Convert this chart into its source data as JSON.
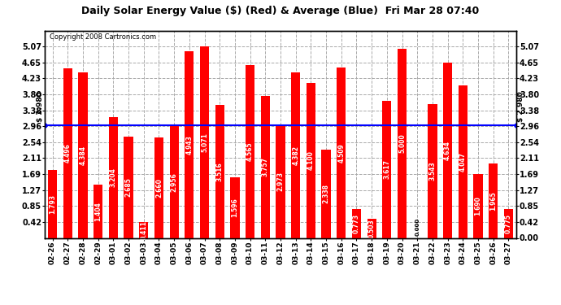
{
  "title": "Daily Solar Energy Value ($) (Red) & Average (Blue)  Fri Mar 28 07:40",
  "copyright": "Copyright 2008 Cartronics.com",
  "average": 2.98,
  "bar_color": "#FF0000",
  "average_color": "#0000FF",
  "background_color": "#FFFFFF",
  "plot_bg_color": "#FFFFFF",
  "categories": [
    "02-26",
    "02-27",
    "02-28",
    "02-29",
    "03-01",
    "03-02",
    "03-03",
    "03-04",
    "03-05",
    "03-06",
    "03-07",
    "03-08",
    "03-09",
    "03-10",
    "03-11",
    "03-12",
    "03-13",
    "03-14",
    "03-15",
    "03-16",
    "03-17",
    "03-18",
    "03-19",
    "03-20",
    "03-21",
    "03-22",
    "03-23",
    "03-24",
    "03-25",
    "03-26",
    "03-27"
  ],
  "values": [
    1.793,
    4.496,
    4.384,
    1.404,
    3.204,
    2.685,
    0.411,
    2.66,
    2.956,
    4.943,
    5.071,
    3.516,
    1.596,
    4.565,
    3.757,
    2.973,
    4.382,
    4.1,
    2.338,
    4.509,
    0.773,
    0.503,
    3.617,
    5.0,
    0.0,
    3.543,
    4.634,
    4.047,
    1.69,
    1.965,
    0.775
  ],
  "ylim": [
    0.0,
    5.49
  ],
  "yticks_left": [
    0.42,
    0.85,
    1.27,
    1.69,
    2.11,
    2.54,
    2.96,
    3.38,
    3.8,
    4.23,
    4.65,
    5.07
  ],
  "yticks_right": [
    0.0,
    0.42,
    0.85,
    1.27,
    1.69,
    2.11,
    2.54,
    2.96,
    3.38,
    3.8,
    4.23,
    4.65,
    5.07
  ],
  "avg_label": "$ 2.980"
}
